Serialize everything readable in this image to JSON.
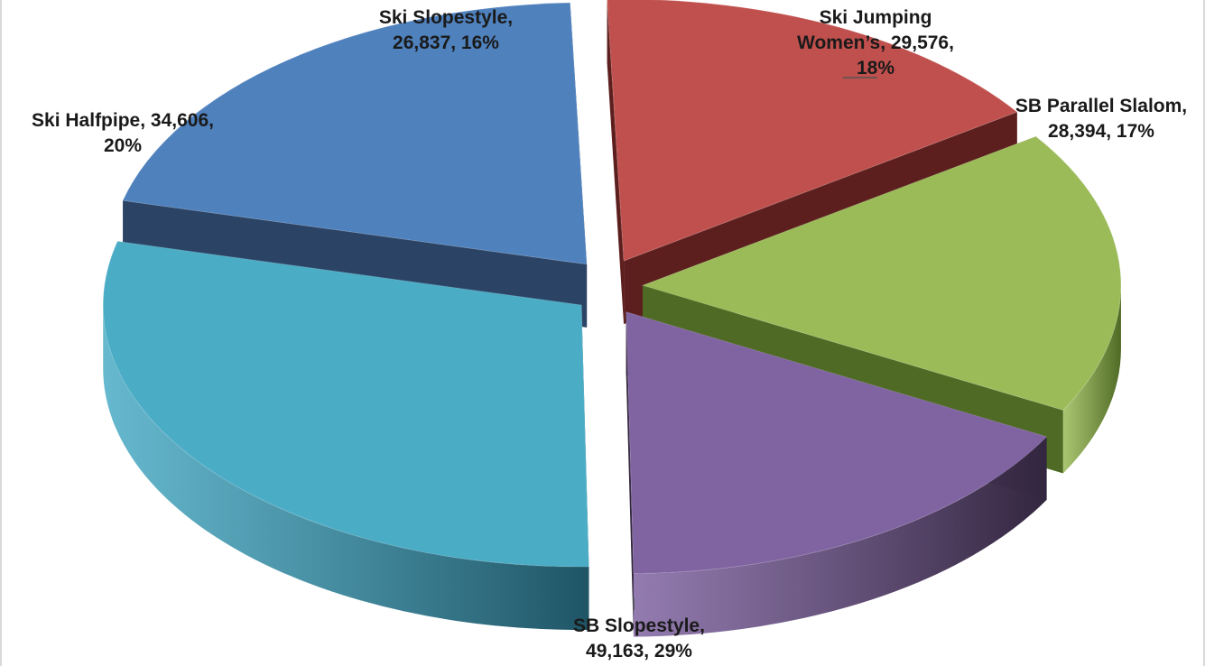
{
  "chart_data": {
    "type": "pie",
    "style": "3d-exploded",
    "title": "",
    "slices": [
      {
        "name": "Ski Slopestyle",
        "value": 26837,
        "value_label": "26,837",
        "percent_label": "16%",
        "color": "#c0504d",
        "side_color": "#5c1f1e"
      },
      {
        "name": "Ski Jumping Women’s",
        "value": 29576,
        "value_label": "29,576",
        "percent_label": "18%",
        "color": "#9bbb59",
        "side_color": "#4f6a24"
      },
      {
        "name": "SB Parallel Slalom",
        "value": 28394,
        "value_label": "28,394",
        "percent_label": "17%",
        "color": "#8064a2",
        "side_color": "#33263f"
      },
      {
        "name": "SB Slopestyle",
        "value": 49163,
        "value_label": "49,163",
        "percent_label": "29%",
        "color": "#4bacc6",
        "side_color": "#1f5566"
      },
      {
        "name": "Ski Halfpipe",
        "value": 34606,
        "value_label": "34,606",
        "percent_label": "20%",
        "color": "#4f81bd",
        "side_color": "#2b4466"
      }
    ],
    "labels": [
      {
        "lines": [
          "Ski Slopestyle,",
          "26,837, 16%"
        ]
      },
      {
        "lines": [
          "Ski Jumping",
          "Women’s, 29,576,",
          "18%"
        ]
      },
      {
        "lines": [
          "SB Parallel Slalom,",
          "28,394, 17%"
        ]
      },
      {
        "lines": [
          "SB Slopestyle,",
          "49,163, 29%"
        ]
      },
      {
        "lines": [
          "Ski Halfpipe, 34,606,",
          "20%"
        ]
      }
    ],
    "legend": "none"
  }
}
